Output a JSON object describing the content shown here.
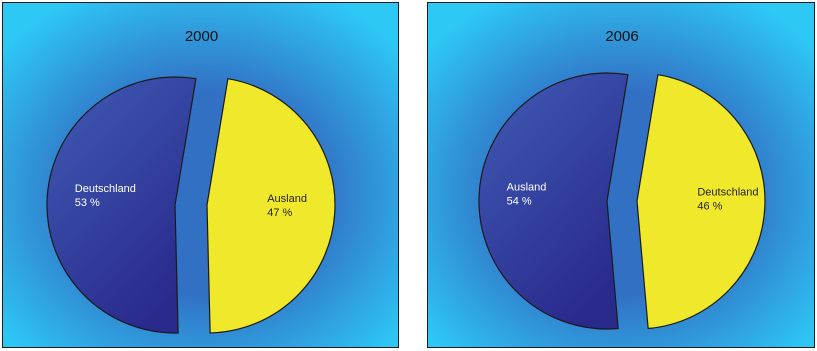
{
  "chart_data": [
    {
      "type": "pie",
      "title": "2000",
      "slices": [
        {
          "label": "Deutschland",
          "value": 53,
          "value_label": "53 %",
          "color": "#3447a3"
        },
        {
          "label": "Ausland",
          "value": 47,
          "value_label": "47 %",
          "color": "#f0e82a"
        }
      ]
    },
    {
      "type": "pie",
      "title": "2006",
      "slices": [
        {
          "label": "Ausland",
          "value": 54,
          "value_label": "54 %",
          "color": "#3447a3"
        },
        {
          "label": "Deutschland",
          "value": 46,
          "value_label": "46 %",
          "color": "#f0e82a"
        }
      ]
    }
  ],
  "colors": {
    "background_outer": "#2ec8f5",
    "background_inner": "#3270c4",
    "dark_slice_light": "#3f5cb5",
    "dark_slice_dark": "#2a2a8c",
    "light_slice": "#f0e82a",
    "outline": "#1a1a1a",
    "dark_label_text": "#ffffff",
    "light_label_text": "#222222"
  }
}
